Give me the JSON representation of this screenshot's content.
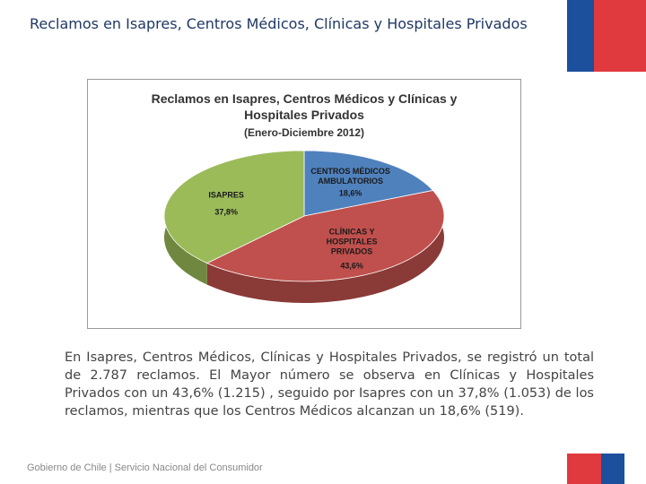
{
  "slide_title": "Reclamos en Isapres, Centros Médicos,  Clínicas y Hospitales Privados",
  "chart_data": {
    "type": "pie",
    "title": "Reclamos en Isapres, Centros Médicos y Clínicas y Hospitales Privados",
    "subtitle": "(Enero-Diciembre 2012)",
    "categories": [
      "CENTROS MÉDICOS AMBULATORIOS",
      "CLÍNICAS Y HOSPITALES PRIVADOS",
      "ISAPRES"
    ],
    "values": [
      18.6,
      43.6,
      37.8
    ],
    "value_labels": [
      "18,6%",
      "43,6%",
      "37,8%"
    ],
    "colors": [
      "#4f81bd",
      "#c0504d",
      "#9bbb59"
    ]
  },
  "body_text": "En Isapres, Centros Médicos,  Clínicas y Hospitales Privados, se registró un total de 2.787 reclamos. El Mayor número se observa en Clínicas y Hospitales Privados con un 43,6% (1.215) , seguido por Isapres con un 37,8% (1.053) de los reclamos, mientras que los Centros Médicos alcanzan un 18,6% (519).",
  "footer": "Gobierno de Chile | Servicio Nacional del Consumidor"
}
